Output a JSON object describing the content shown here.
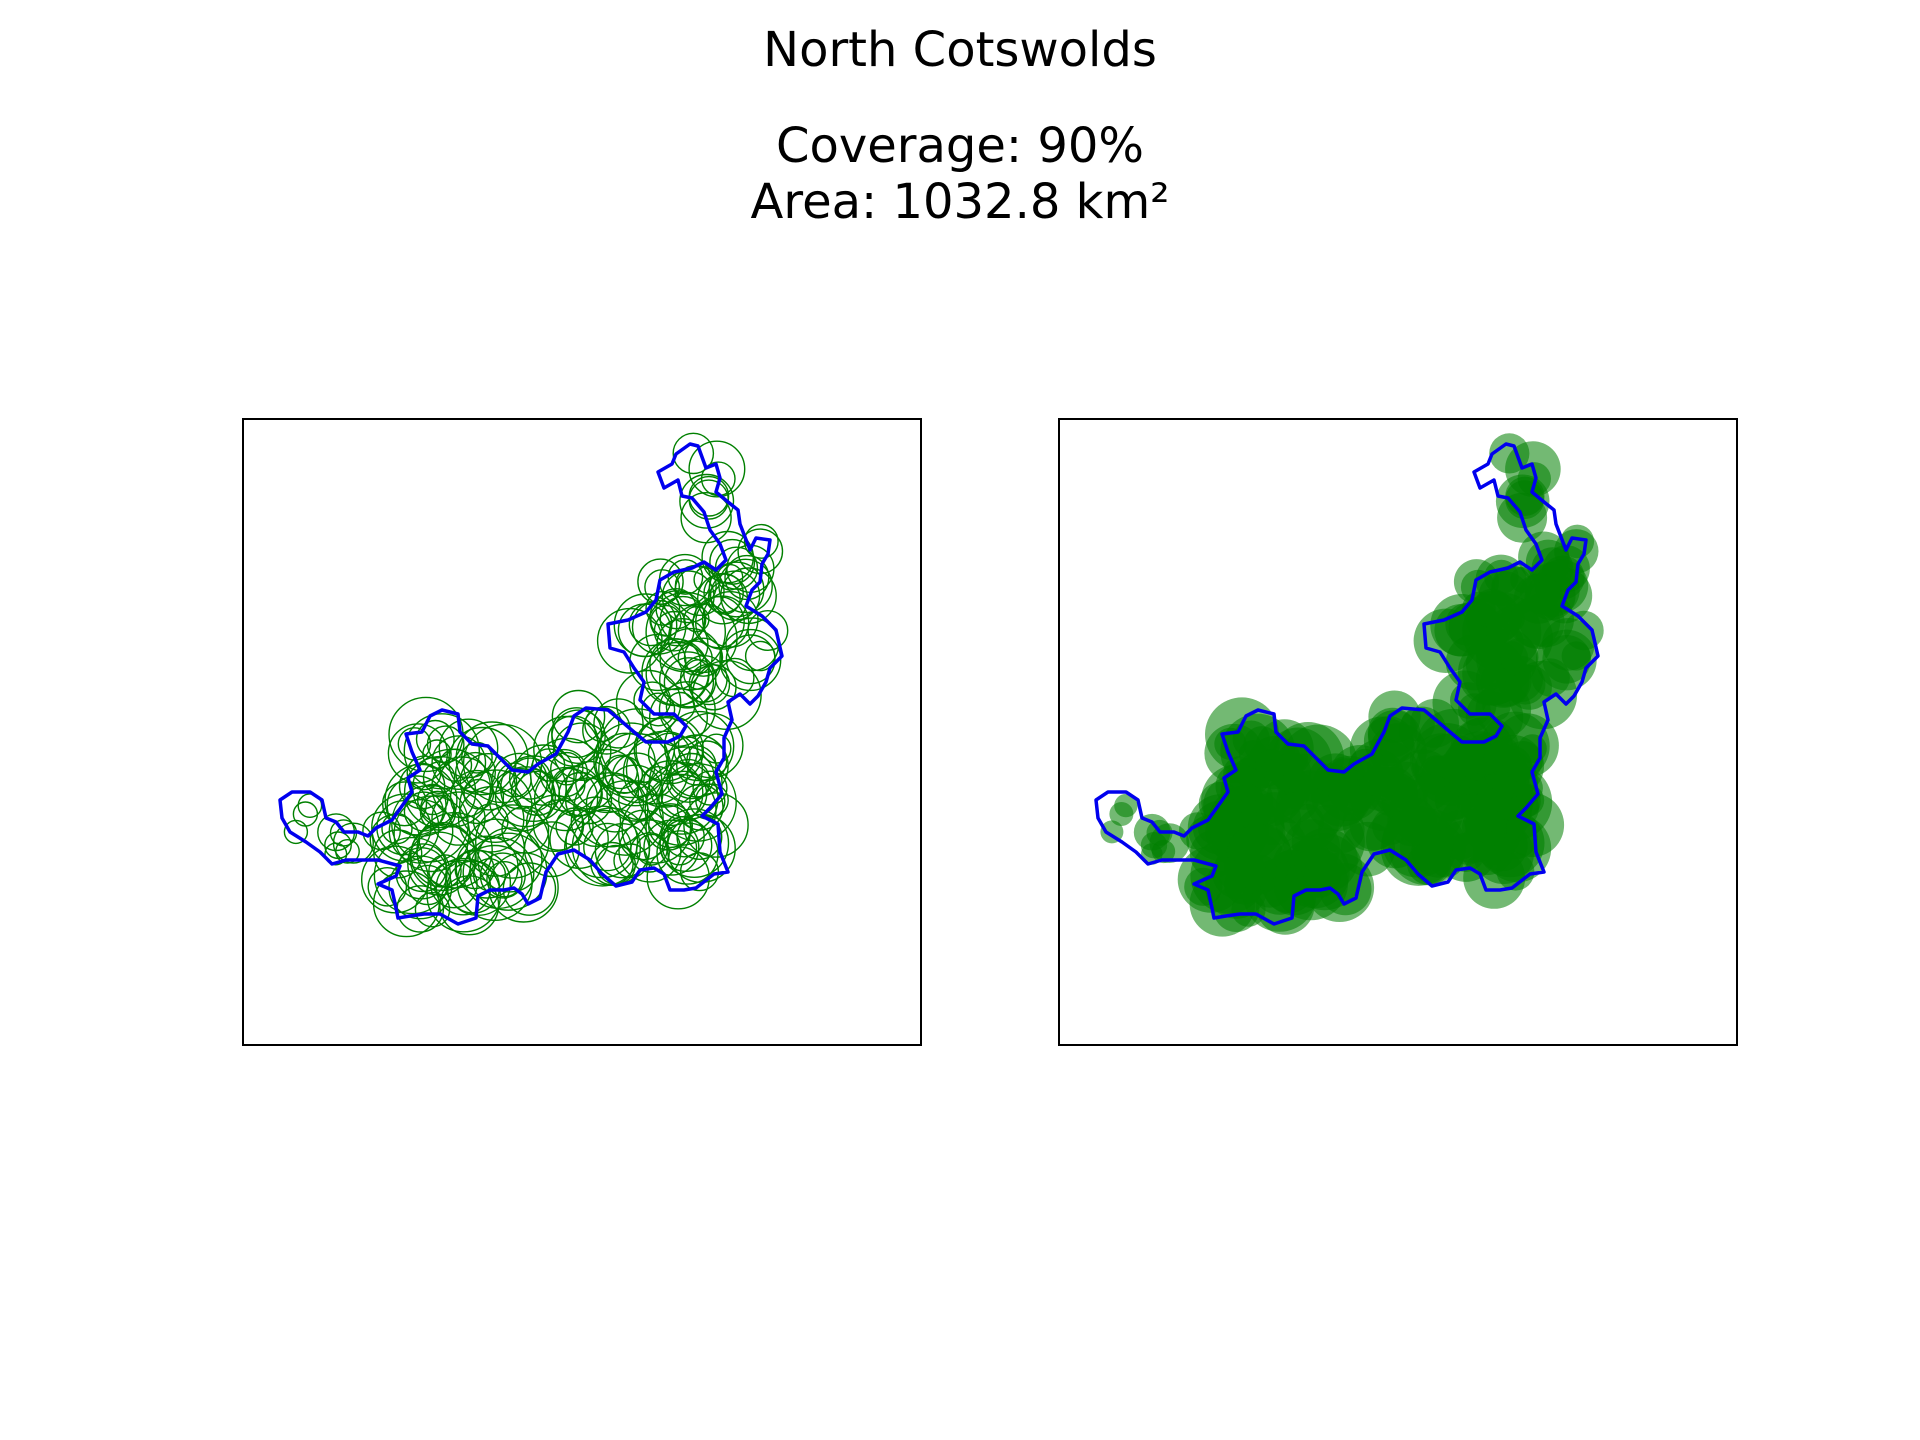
{
  "header": {
    "title": "North Cotswolds",
    "coverage": "Coverage: 90%",
    "area": "Area: 1032.8 km²"
  },
  "colors": {
    "boundary": "#0000ee",
    "coverage": "#008000",
    "background": "#ffffff"
  },
  "map": {
    "coverage_percent": 90,
    "area_km2": 1032.8,
    "panels": [
      {
        "style": "circle-outlines"
      },
      {
        "style": "filled-circles"
      }
    ]
  }
}
